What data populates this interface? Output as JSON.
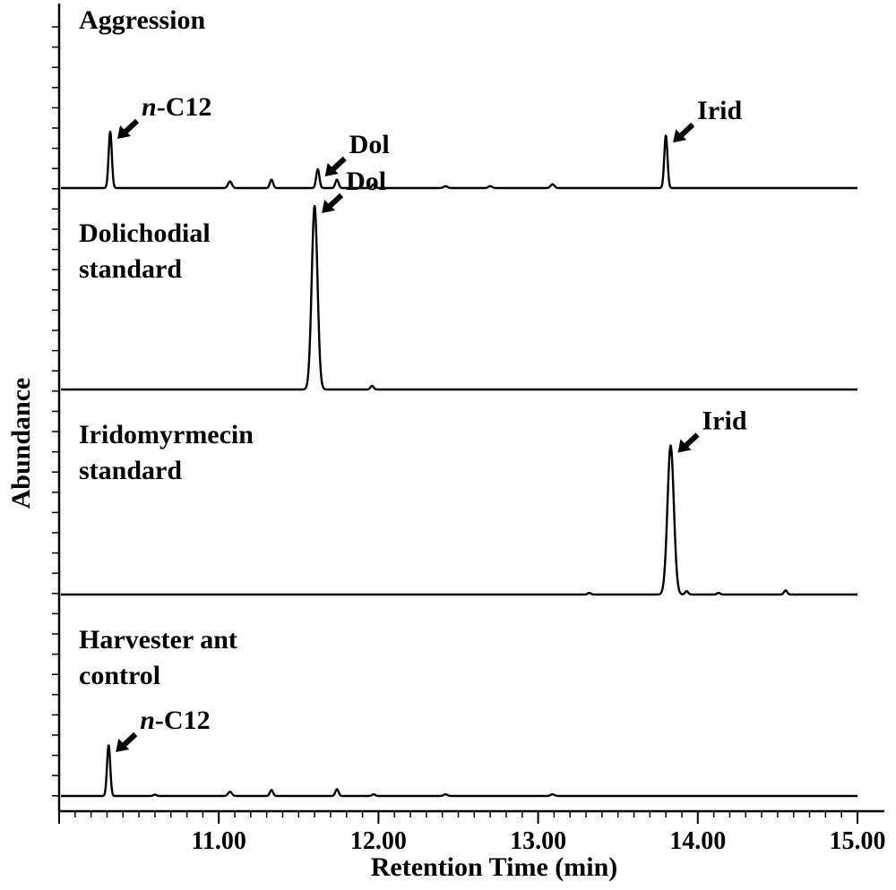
{
  "chart_data": {
    "type": "line",
    "xlabel": "Retention Time (min)",
    "ylabel": "Abundance",
    "xlim": [
      10.0,
      15.0
    ],
    "xticks": [
      11.0,
      12.0,
      13.0,
      14.0,
      15.0
    ],
    "xtick_labels": [
      "11.00",
      "12.00",
      "13.00",
      "14.00",
      "15.00"
    ],
    "panels": [
      {
        "title_lines": [
          "Aggression"
        ],
        "peaks": [
          {
            "x": 10.32,
            "h": 0.3,
            "w": 0.01
          },
          {
            "x": 11.07,
            "h": 0.035,
            "w": 0.012
          },
          {
            "x": 11.33,
            "h": 0.045,
            "w": 0.01
          },
          {
            "x": 11.62,
            "h": 0.1,
            "w": 0.01
          },
          {
            "x": 11.74,
            "h": 0.045,
            "w": 0.01
          },
          {
            "x": 11.97,
            "h": 0.02,
            "w": 0.01
          },
          {
            "x": 12.42,
            "h": 0.01,
            "w": 0.012
          },
          {
            "x": 12.7,
            "h": 0.01,
            "w": 0.012
          },
          {
            "x": 13.09,
            "h": 0.02,
            "w": 0.012
          },
          {
            "x": 13.8,
            "h": 0.28,
            "w": 0.01
          }
        ],
        "labels": [
          {
            "text": "C12",
            "prefix": "n",
            "x": 10.32
          },
          {
            "text": "Dol",
            "x": 11.62
          },
          {
            "text": "Irid",
            "x": 13.8
          }
        ]
      },
      {
        "title_lines": [
          "Dolichodial",
          "standard"
        ],
        "peaks": [
          {
            "x": 11.6,
            "h": 1.0,
            "w": 0.018
          },
          {
            "x": 11.96,
            "h": 0.02,
            "w": 0.01
          }
        ],
        "labels": [
          {
            "text": "Dol",
            "x": 11.6
          }
        ]
      },
      {
        "title_lines": [
          "Iridomyrmecin",
          "standard"
        ],
        "peaks": [
          {
            "x": 13.32,
            "h": 0.01,
            "w": 0.01
          },
          {
            "x": 13.83,
            "h": 0.9,
            "w": 0.02
          },
          {
            "x": 13.93,
            "h": 0.02,
            "w": 0.01
          },
          {
            "x": 14.13,
            "h": 0.01,
            "w": 0.01
          },
          {
            "x": 14.55,
            "h": 0.025,
            "w": 0.01
          }
        ],
        "labels": [
          {
            "text": "Irid",
            "x": 13.83
          }
        ]
      },
      {
        "title_lines": [
          "Harvester ant",
          "control"
        ],
        "peaks": [
          {
            "x": 10.31,
            "h": 0.3,
            "w": 0.01
          },
          {
            "x": 10.6,
            "h": 0.008,
            "w": 0.01
          },
          {
            "x": 11.07,
            "h": 0.025,
            "w": 0.012
          },
          {
            "x": 11.33,
            "h": 0.035,
            "w": 0.01
          },
          {
            "x": 11.74,
            "h": 0.04,
            "w": 0.01
          },
          {
            "x": 11.97,
            "h": 0.01,
            "w": 0.01
          },
          {
            "x": 12.42,
            "h": 0.01,
            "w": 0.012
          },
          {
            "x": 13.09,
            "h": 0.01,
            "w": 0.012
          }
        ],
        "labels": [
          {
            "text": "C12",
            "prefix": "n",
            "x": 10.31
          }
        ]
      }
    ]
  }
}
